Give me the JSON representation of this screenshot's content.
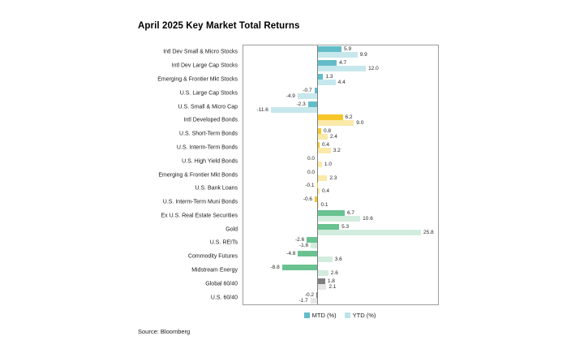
{
  "chart_data": {
    "type": "bar",
    "orientation": "horizontal",
    "title": "April 2025 Key Market Total Returns",
    "source": "Source: Bloomberg",
    "legend": [
      {
        "label": "MTD (%)",
        "color": "#62BDC9"
      },
      {
        "label": "YTD (%)",
        "color": "#BCE3E9"
      }
    ],
    "legend_position": "bottom-center",
    "grid": false,
    "xlim": [
      -18.5,
      30.3
    ],
    "categories": [
      "Intl Dev Small & Micro Stocks",
      "Intl Dev Large Cap Stocks",
      "Emerging & Frontier Mkt Stocks",
      "U.S. Large Cap Stocks",
      "U.S. Small & Micro Cap",
      "Intl Developed Bonds",
      "U.S. Short-Term Bonds",
      "U.S. Interm-Term Bonds",
      "U.S. High Yield Bonds",
      "Emerging & Frontier Mkt Bonds",
      "U.S. Bank Loans",
      "U.S. Interm-Term Muni Bonds",
      "Ex U.S. Real Estate Securities",
      "Gold",
      "U.S. REITs",
      "Commodity Futures",
      "Midstream Energy",
      "Global 60/40",
      "U.S. 60/40"
    ],
    "series": [
      {
        "name": "MTD (%)",
        "values": [
          5.9,
          4.7,
          1.3,
          -0.7,
          -2.3,
          6.2,
          0.8,
          0.4,
          0.0,
          0.0,
          -0.1,
          -0.6,
          6.7,
          5.3,
          -2.6,
          -4.8,
          -8.8,
          1.8,
          -0.2
        ]
      },
      {
        "name": "YTD (%)",
        "values": [
          9.9,
          12.0,
          4.4,
          -4.9,
          -11.6,
          9.0,
          2.4,
          3.2,
          1.0,
          2.3,
          0.4,
          0.1,
          10.6,
          25.8,
          -1.6,
          3.6,
          2.6,
          2.1,
          -1.7
        ]
      }
    ],
    "groups": [
      {
        "name": "stocks",
        "start": 0,
        "end": 4,
        "mtd_color": "#62BDC9",
        "ytd_color": "#C6E8EC"
      },
      {
        "name": "bonds",
        "start": 5,
        "end": 11,
        "mtd_color": "#F6C62A",
        "ytd_color": "#FAE9A8"
      },
      {
        "name": "real-assets",
        "start": 12,
        "end": 16,
        "mtd_color": "#69C290",
        "ytd_color": "#D2EDDE"
      },
      {
        "name": "blended-60-40",
        "start": 17,
        "end": 18,
        "mtd_color": "#7F7F7F",
        "ytd_color": "#E6E6E6"
      }
    ]
  }
}
